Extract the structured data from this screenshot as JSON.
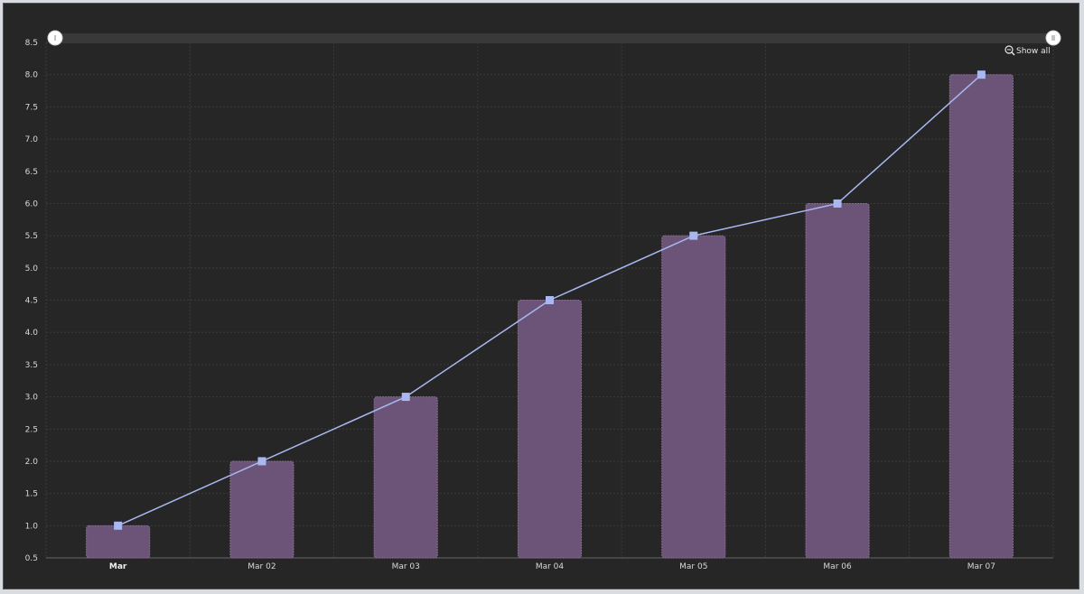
{
  "chart_data": {
    "type": "bar",
    "categories": [
      "Mar",
      "Mar 02",
      "Mar 03",
      "Mar 04",
      "Mar 05",
      "Mar 06",
      "Mar 07"
    ],
    "series": [
      {
        "type": "bar",
        "values": [
          1.0,
          2.0,
          3.0,
          4.5,
          5.5,
          6.0,
          8.0
        ]
      },
      {
        "type": "line",
        "values": [
          1.0,
          2.0,
          3.0,
          4.5,
          5.5,
          6.0,
          8.0
        ]
      }
    ],
    "yticks": [
      "0.5",
      "1.0",
      "1.5",
      "2.0",
      "2.5",
      "3.0",
      "3.5",
      "4.0",
      "4.5",
      "5.0",
      "5.5",
      "6.0",
      "6.5",
      "7.0",
      "7.5",
      "8.0",
      "8.5"
    ],
    "ylim": [
      0.5,
      8.5
    ],
    "grid": true,
    "colors": {
      "background": "#262626",
      "bar_fill": "#6b5478",
      "bar_stroke": "#8a6e96",
      "line": "#a9b8f0",
      "marker": "#a9b8f0",
      "grid": "#3a3a3a",
      "scrollbar": "#3a3a3a"
    }
  },
  "zoom": {
    "show_all_label": "Show all",
    "icon": "zoom-out-icon"
  },
  "scrollbar": {
    "start_grip_icon": "grip-icon",
    "end_grip_icon": "grip-icon"
  }
}
